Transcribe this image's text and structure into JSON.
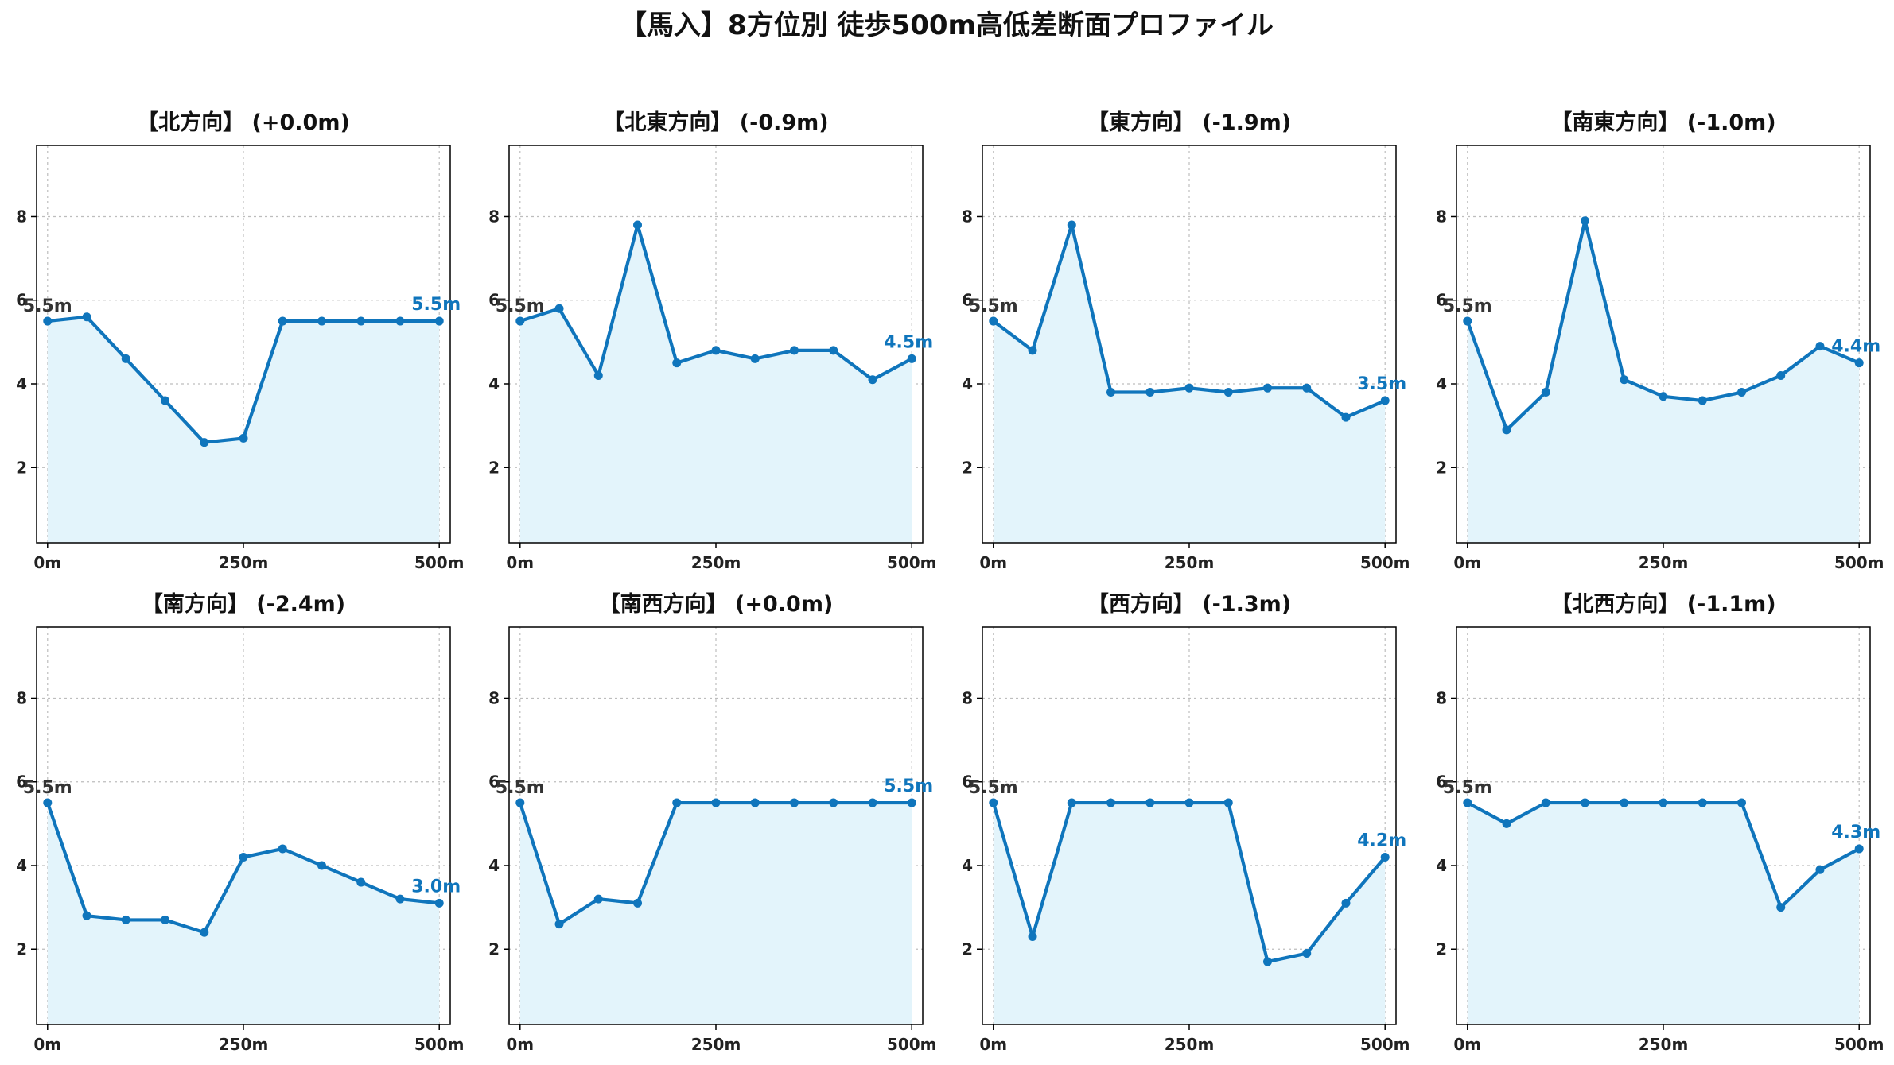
{
  "figure": {
    "title": "【馬入】8方位別 徒歩500m高低差断面プロファイル"
  },
  "colors": {
    "line": "#0f75bc",
    "fill": "#e3f4fb",
    "grid": "#bdbdbd",
    "start_label": "#333333"
  },
  "chart_data": [
    {
      "type": "area",
      "title": "【北方向】 (+0.0m)",
      "x": [
        0,
        50,
        100,
        150,
        200,
        250,
        300,
        350,
        400,
        450,
        500
      ],
      "y": [
        5.5,
        5.6,
        4.6,
        3.6,
        2.6,
        2.7,
        5.5,
        5.5,
        5.5,
        5.5,
        5.5
      ],
      "xticks": [
        "0m",
        "250m",
        "500m"
      ],
      "yticks": [
        "2",
        "4",
        "6",
        "8"
      ],
      "start_label": "5.5m",
      "end_label": "5.5m",
      "xlim": [
        -14,
        514
      ],
      "ylim": [
        0.2,
        9.7
      ],
      "grid": true
    },
    {
      "type": "area",
      "title": "【北東方向】 (-0.9m)",
      "x": [
        0,
        50,
        100,
        150,
        200,
        250,
        300,
        350,
        400,
        450,
        500
      ],
      "y": [
        5.5,
        5.8,
        4.2,
        7.8,
        4.5,
        4.8,
        4.6,
        4.8,
        4.8,
        4.1,
        4.6
      ],
      "xticks": [
        "0m",
        "250m",
        "500m"
      ],
      "yticks": [
        "2",
        "4",
        "6",
        "8"
      ],
      "start_label": "5.5m",
      "end_label": "4.5m",
      "xlim": [
        -14,
        514
      ],
      "ylim": [
        0.2,
        9.7
      ],
      "grid": true
    },
    {
      "type": "area",
      "title": "【東方向】 (-1.9m)",
      "x": [
        0,
        50,
        100,
        150,
        200,
        250,
        300,
        350,
        400,
        450,
        500
      ],
      "y": [
        5.5,
        4.8,
        7.8,
        3.8,
        3.8,
        3.9,
        3.8,
        3.9,
        3.9,
        3.2,
        3.6
      ],
      "xticks": [
        "0m",
        "250m",
        "500m"
      ],
      "yticks": [
        "2",
        "4",
        "6",
        "8"
      ],
      "start_label": "5.5m",
      "end_label": "3.5m",
      "xlim": [
        -14,
        514
      ],
      "ylim": [
        0.2,
        9.7
      ],
      "grid": true
    },
    {
      "type": "area",
      "title": "【南東方向】 (-1.0m)",
      "x": [
        0,
        50,
        100,
        150,
        200,
        250,
        300,
        350,
        400,
        450,
        500
      ],
      "y": [
        5.5,
        2.9,
        3.8,
        7.9,
        4.1,
        3.7,
        3.6,
        3.8,
        4.2,
        4.9,
        4.5
      ],
      "xticks": [
        "0m",
        "250m",
        "500m"
      ],
      "yticks": [
        "2",
        "4",
        "6",
        "8"
      ],
      "start_label": "5.5m",
      "end_label": "4.4m",
      "xlim": [
        -14,
        514
      ],
      "ylim": [
        0.2,
        9.7
      ],
      "grid": true
    },
    {
      "type": "area",
      "title": "【南方向】 (-2.4m)",
      "x": [
        0,
        50,
        100,
        150,
        200,
        250,
        300,
        350,
        400,
        450,
        500
      ],
      "y": [
        5.5,
        2.8,
        2.7,
        2.7,
        2.4,
        4.2,
        4.4,
        4.0,
        3.6,
        3.2,
        3.1
      ],
      "xticks": [
        "0m",
        "250m",
        "500m"
      ],
      "yticks": [
        "2",
        "4",
        "6",
        "8"
      ],
      "start_label": "5.5m",
      "end_label": "3.0m",
      "xlim": [
        -14,
        514
      ],
      "ylim": [
        0.2,
        9.7
      ],
      "grid": true
    },
    {
      "type": "area",
      "title": "【南西方向】 (+0.0m)",
      "x": [
        0,
        50,
        100,
        150,
        200,
        250,
        300,
        350,
        400,
        450,
        500
      ],
      "y": [
        5.5,
        2.6,
        3.2,
        3.1,
        5.5,
        5.5,
        5.5,
        5.5,
        5.5,
        5.5,
        5.5
      ],
      "xticks": [
        "0m",
        "250m",
        "500m"
      ],
      "yticks": [
        "2",
        "4",
        "6",
        "8"
      ],
      "start_label": "5.5m",
      "end_label": "5.5m",
      "xlim": [
        -14,
        514
      ],
      "ylim": [
        0.2,
        9.7
      ],
      "grid": true
    },
    {
      "type": "area",
      "title": "【西方向】 (-1.3m)",
      "x": [
        0,
        50,
        100,
        150,
        200,
        250,
        300,
        350,
        400,
        450,
        500
      ],
      "y": [
        5.5,
        2.3,
        5.5,
        5.5,
        5.5,
        5.5,
        5.5,
        1.7,
        1.9,
        3.1,
        4.2
      ],
      "xticks": [
        "0m",
        "250m",
        "500m"
      ],
      "yticks": [
        "2",
        "4",
        "6",
        "8"
      ],
      "start_label": "5.5m",
      "end_label": "4.2m",
      "xlim": [
        -14,
        514
      ],
      "ylim": [
        0.2,
        9.7
      ],
      "grid": true
    },
    {
      "type": "area",
      "title": "【北西方向】 (-1.1m)",
      "x": [
        0,
        50,
        100,
        150,
        200,
        250,
        300,
        350,
        400,
        450,
        500
      ],
      "y": [
        5.5,
        5.0,
        5.5,
        5.5,
        5.5,
        5.5,
        5.5,
        5.5,
        3.0,
        3.9,
        4.4
      ],
      "xticks": [
        "0m",
        "250m",
        "500m"
      ],
      "yticks": [
        "2",
        "4",
        "6",
        "8"
      ],
      "start_label": "5.5m",
      "end_label": "4.3m",
      "xlim": [
        -14,
        514
      ],
      "ylim": [
        0.2,
        9.7
      ],
      "grid": true
    }
  ]
}
